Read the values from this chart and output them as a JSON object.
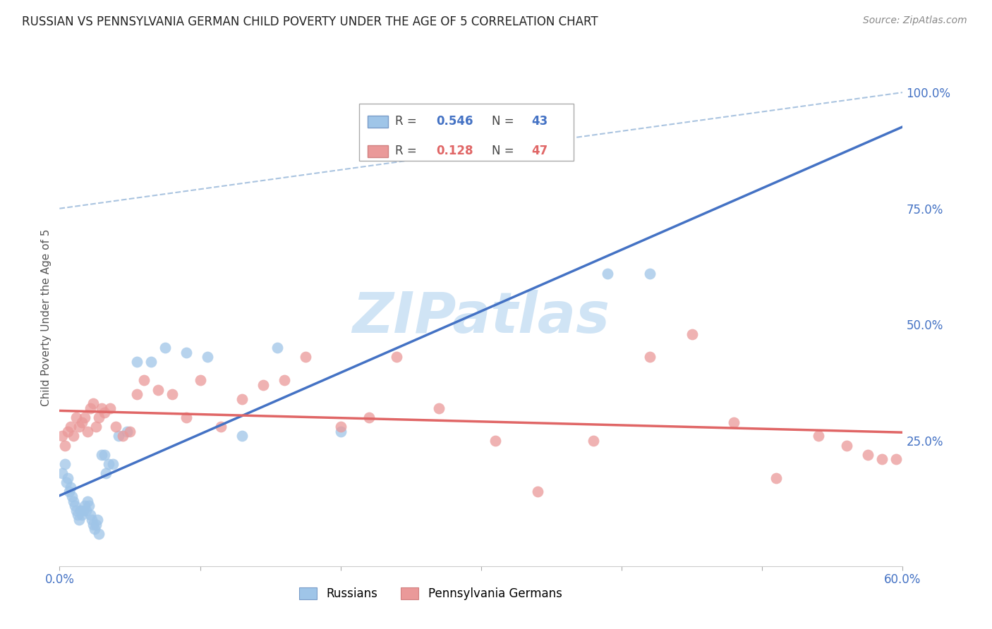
{
  "title": "RUSSIAN VS PENNSYLVANIA GERMAN CHILD POVERTY UNDER THE AGE OF 5 CORRELATION CHART",
  "source": "Source: ZipAtlas.com",
  "ylabel": "Child Poverty Under the Age of 5",
  "xlim": [
    0.0,
    0.6
  ],
  "ylim": [
    -0.02,
    1.05
  ],
  "xticks": [
    0.0,
    0.1,
    0.2,
    0.3,
    0.4,
    0.5,
    0.6
  ],
  "xticklabels": [
    "0.0%",
    "",
    "",
    "",
    "",
    "",
    "60.0%"
  ],
  "yticks_right": [
    0.0,
    0.25,
    0.5,
    0.75,
    1.0
  ],
  "yticklabels_right": [
    "",
    "25.0%",
    "50.0%",
    "75.0%",
    "100.0%"
  ],
  "russian_color": "#9fc5e8",
  "pagerman_color": "#ea9999",
  "russian_line_color": "#4472c4",
  "pagerman_line_color": "#e06666",
  "ref_line_color": "#aac4e0",
  "watermark": "ZIPatlas",
  "watermark_color": "#d0e4f5",
  "background_color": "#ffffff",
  "grid_color": "#cccccc",
  "axis_label_color": "#4472c4",
  "russians_x": [
    0.002,
    0.004,
    0.005,
    0.006,
    0.007,
    0.008,
    0.009,
    0.01,
    0.011,
    0.012,
    0.013,
    0.014,
    0.015,
    0.016,
    0.017,
    0.018,
    0.019,
    0.02,
    0.021,
    0.022,
    0.023,
    0.024,
    0.025,
    0.026,
    0.027,
    0.028,
    0.03,
    0.032,
    0.033,
    0.035,
    0.038,
    0.042,
    0.048,
    0.055,
    0.065,
    0.075,
    0.09,
    0.105,
    0.13,
    0.155,
    0.2,
    0.39,
    0.42
  ],
  "russians_y": [
    0.18,
    0.2,
    0.16,
    0.17,
    0.14,
    0.15,
    0.13,
    0.12,
    0.11,
    0.1,
    0.09,
    0.08,
    0.1,
    0.09,
    0.1,
    0.11,
    0.1,
    0.12,
    0.11,
    0.09,
    0.08,
    0.07,
    0.06,
    0.07,
    0.08,
    0.05,
    0.22,
    0.22,
    0.18,
    0.2,
    0.2,
    0.26,
    0.27,
    0.42,
    0.42,
    0.45,
    0.44,
    0.43,
    0.26,
    0.45,
    0.27,
    0.61,
    0.61
  ],
  "pagerman_x": [
    0.002,
    0.004,
    0.006,
    0.008,
    0.01,
    0.012,
    0.014,
    0.016,
    0.018,
    0.02,
    0.022,
    0.024,
    0.026,
    0.028,
    0.03,
    0.032,
    0.036,
    0.04,
    0.045,
    0.05,
    0.055,
    0.06,
    0.07,
    0.08,
    0.09,
    0.1,
    0.115,
    0.13,
    0.145,
    0.16,
    0.175,
    0.2,
    0.22,
    0.24,
    0.27,
    0.31,
    0.34,
    0.38,
    0.42,
    0.45,
    0.48,
    0.51,
    0.54,
    0.56,
    0.575,
    0.585,
    0.595
  ],
  "pagerman_y": [
    0.26,
    0.24,
    0.27,
    0.28,
    0.26,
    0.3,
    0.28,
    0.29,
    0.3,
    0.27,
    0.32,
    0.33,
    0.28,
    0.3,
    0.32,
    0.31,
    0.32,
    0.28,
    0.26,
    0.27,
    0.35,
    0.38,
    0.36,
    0.35,
    0.3,
    0.38,
    0.28,
    0.34,
    0.37,
    0.38,
    0.43,
    0.28,
    0.3,
    0.43,
    0.32,
    0.25,
    0.14,
    0.25,
    0.43,
    0.48,
    0.29,
    0.17,
    0.26,
    0.24,
    0.22,
    0.21,
    0.21
  ],
  "russian_line_x0": 0.0,
  "russian_line_y0": 0.05,
  "russian_line_x1": 0.42,
  "russian_line_y1": 0.65,
  "pagerman_line_x0": 0.0,
  "pagerman_line_y0": 0.26,
  "pagerman_line_x1": 0.6,
  "pagerman_line_y1": 0.32,
  "ref_line_x0": 0.0,
  "ref_line_y0": 0.75,
  "ref_line_x1": 0.6,
  "ref_line_y1": 1.0
}
